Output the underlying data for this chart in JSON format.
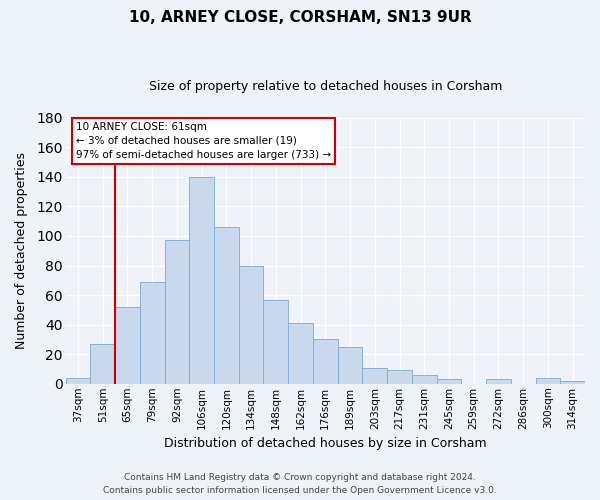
{
  "title": "10, ARNEY CLOSE, CORSHAM, SN13 9UR",
  "subtitle": "Size of property relative to detached houses in Corsham",
  "xlabel": "Distribution of detached houses by size in Corsham",
  "ylabel": "Number of detached properties",
  "bar_color": "#c8d9ee",
  "bar_edge_color": "#8ab0d0",
  "categories": [
    "37sqm",
    "51sqm",
    "65sqm",
    "79sqm",
    "92sqm",
    "106sqm",
    "120sqm",
    "134sqm",
    "148sqm",
    "162sqm",
    "176sqm",
    "189sqm",
    "203sqm",
    "217sqm",
    "231sqm",
    "245sqm",
    "259sqm",
    "272sqm",
    "286sqm",
    "300sqm",
    "314sqm"
  ],
  "values": [
    4,
    27,
    52,
    69,
    97,
    140,
    106,
    80,
    57,
    41,
    30,
    25,
    11,
    9,
    6,
    3,
    0,
    3,
    0,
    4,
    2
  ],
  "ylim": [
    0,
    180
  ],
  "yticks": [
    0,
    20,
    40,
    60,
    80,
    100,
    120,
    140,
    160,
    180
  ],
  "annotation_title": "10 ARNEY CLOSE: 61sqm",
  "annotation_line1": "← 3% of detached houses are smaller (19)",
  "annotation_line2": "97% of semi-detached houses are larger (733) →",
  "vline_x": 2,
  "vline_color": "#cc0000",
  "annotation_box_color": "#ffffff",
  "annotation_box_edge": "#cc0000",
  "footer1": "Contains HM Land Registry data © Crown copyright and database right 2024.",
  "footer2": "Contains public sector information licensed under the Open Government Licence v3.0.",
  "background_color": "#eef2f9",
  "grid_color": "#ffffff",
  "title_fontsize": 11,
  "subtitle_fontsize": 9,
  "xlabel_fontsize": 9,
  "ylabel_fontsize": 9,
  "tick_fontsize": 7.5,
  "annotation_fontsize": 7.5,
  "footer_fontsize": 6.5
}
